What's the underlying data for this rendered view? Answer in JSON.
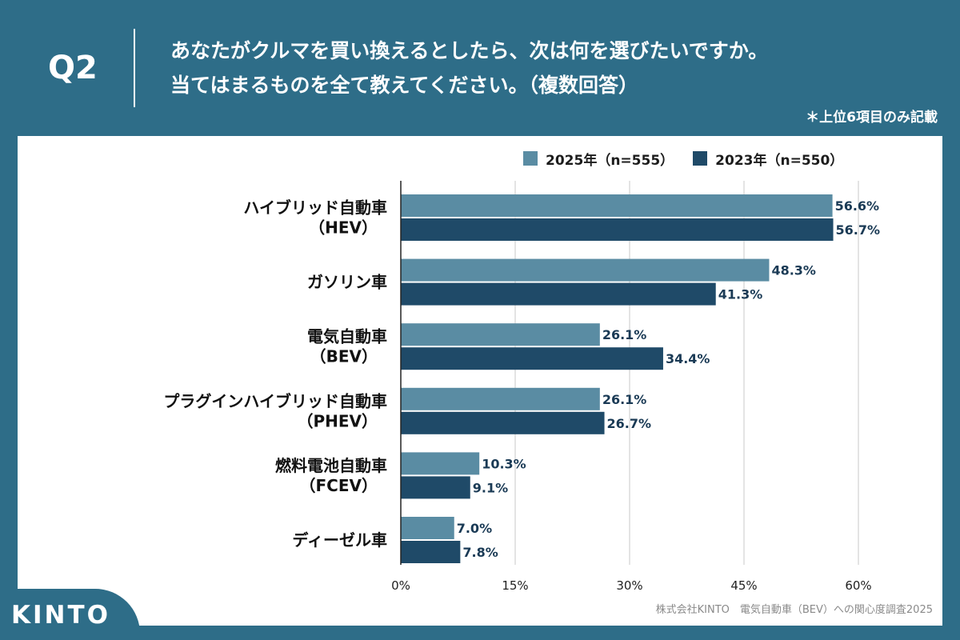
{
  "header": {
    "question_label": "Q2",
    "question_line1": "あなたがクルマを買い換えるとしたら、次は何を選びたいですか。",
    "question_line2": "当てはまるものを全て教えてください。（複数回答）",
    "note": "＊上位6項目のみ記載"
  },
  "footer": {
    "source": "株式会社KINTO　電気自動車（BEV）への関心度調査2025",
    "logo": "KINTO"
  },
  "colors": {
    "background": "#2e6d88",
    "series_2025": "#5a8ca3",
    "series_2023": "#1f4a68",
    "grid": "#c8c8c8",
    "label_text": "#1a3a55"
  },
  "chart_data": {
    "type": "bar",
    "orientation": "horizontal",
    "title": "",
    "xlabel": "",
    "ylabel": "",
    "xlim": [
      0,
      60
    ],
    "xticks": [
      0,
      15,
      30,
      45,
      60
    ],
    "xtick_labels": [
      "0%",
      "15%",
      "30%",
      "45%",
      "60%"
    ],
    "grid": true,
    "legend_position": "top-right",
    "categories": [
      [
        "ハイブリッド自動車",
        "（HEV）"
      ],
      [
        "ガソリン車"
      ],
      [
        "電気自動車",
        "（BEV）"
      ],
      [
        "プラグインハイブリッド自動車",
        "（PHEV）"
      ],
      [
        "燃料電池自動車",
        "（FCEV）"
      ],
      [
        "ディーゼル車"
      ]
    ],
    "series": [
      {
        "name": "2025年（n=555）",
        "values": [
          56.6,
          48.3,
          26.1,
          26.1,
          10.3,
          7.0
        ],
        "labels": [
          "56.6%",
          "48.3%",
          "26.1%",
          "26.1%",
          "10.3%",
          "7.0%"
        ]
      },
      {
        "name": "2023年（n=550）",
        "values": [
          56.7,
          41.3,
          34.4,
          26.7,
          9.1,
          7.8
        ],
        "labels": [
          "56.7%",
          "41.3%",
          "34.4%",
          "26.7%",
          "9.1%",
          "7.8%"
        ]
      }
    ]
  }
}
